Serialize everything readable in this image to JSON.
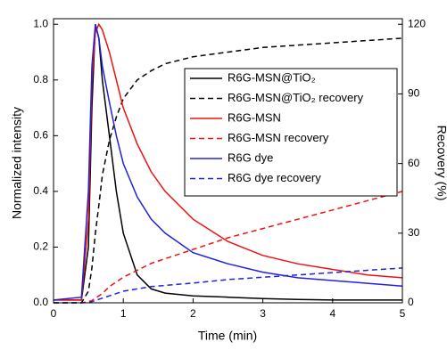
{
  "chart_data": {
    "type": "line",
    "x_label": "Time (min)",
    "y_label": "Normalized intensity",
    "y2_label": "Recovery (%)",
    "x": [
      0,
      0.4,
      0.5,
      0.55,
      0.6,
      0.65,
      0.7,
      0.8,
      0.9,
      1.0,
      1.2,
      1.4,
      1.6,
      2,
      2.5,
      3,
      3.5,
      4,
      4.5,
      5
    ],
    "xlim": [
      0,
      5
    ],
    "xticks": [
      0,
      1,
      2,
      3,
      4,
      5
    ],
    "ylim": [
      0,
      1.02
    ],
    "yticks": [
      {
        "value": 0,
        "label": "0.0"
      },
      0.2,
      0.4,
      0.6,
      0.8,
      {
        "value": 1,
        "label": "1.0"
      }
    ],
    "y2lim": [
      0,
      122.4
    ],
    "y2ticks": [
      0,
      30,
      60,
      90,
      120
    ],
    "series": [
      {
        "name": "R6G-MSN@TiO₂",
        "color": "#000000",
        "linestyle": "solid",
        "values": [
          0.01,
          0.01,
          0.2,
          0.7,
          1.0,
          0.95,
          0.8,
          0.6,
          0.4,
          0.25,
          0.1,
          0.05,
          0.035,
          0.025,
          0.02,
          0.015,
          0.012,
          0.01,
          0.01,
          0.01
        ]
      },
      {
        "name": "R6G-MSN@TiO₂ recovery",
        "color": "#000000",
        "linestyle": "dashed",
        "axis": "y2",
        "values": [
          0,
          0,
          5,
          15,
          30,
          42,
          55,
          70,
          80,
          88,
          96,
          100,
          103,
          106,
          108,
          110,
          111,
          112,
          113,
          114
        ]
      },
      {
        "name": "R6G-MSN",
        "color": "#ee1111",
        "linestyle": "solid",
        "values": [
          0.01,
          0.01,
          0.3,
          0.8,
          0.97,
          1.0,
          0.98,
          0.9,
          0.8,
          0.7,
          0.57,
          0.47,
          0.4,
          0.3,
          0.22,
          0.17,
          0.14,
          0.12,
          0.1,
          0.09
        ]
      },
      {
        "name": "R6G-MSN recovery",
        "color": "#ee1111",
        "linestyle": "dashed",
        "axis": "y2",
        "values": [
          0,
          0,
          0.5,
          1,
          2,
          3,
          4,
          7,
          9,
          11,
          14,
          17,
          19,
          23,
          28,
          32,
          36,
          40,
          44,
          48
        ]
      },
      {
        "name": "R6G dye",
        "color": "#2222dd",
        "linestyle": "solid",
        "values": [
          0.01,
          0.02,
          0.4,
          0.85,
          1.0,
          0.95,
          0.85,
          0.72,
          0.6,
          0.5,
          0.38,
          0.3,
          0.25,
          0.18,
          0.14,
          0.11,
          0.09,
          0.08,
          0.07,
          0.06
        ]
      },
      {
        "name": "R6G dye recovery",
        "color": "#2222dd",
        "linestyle": "dashed",
        "axis": "y2",
        "values": [
          0,
          0,
          0.2,
          0.5,
          1,
          1.5,
          2,
          3,
          4,
          5,
          6,
          7,
          7.5,
          8.5,
          10,
          11,
          12,
          13,
          14,
          15
        ]
      }
    ]
  }
}
